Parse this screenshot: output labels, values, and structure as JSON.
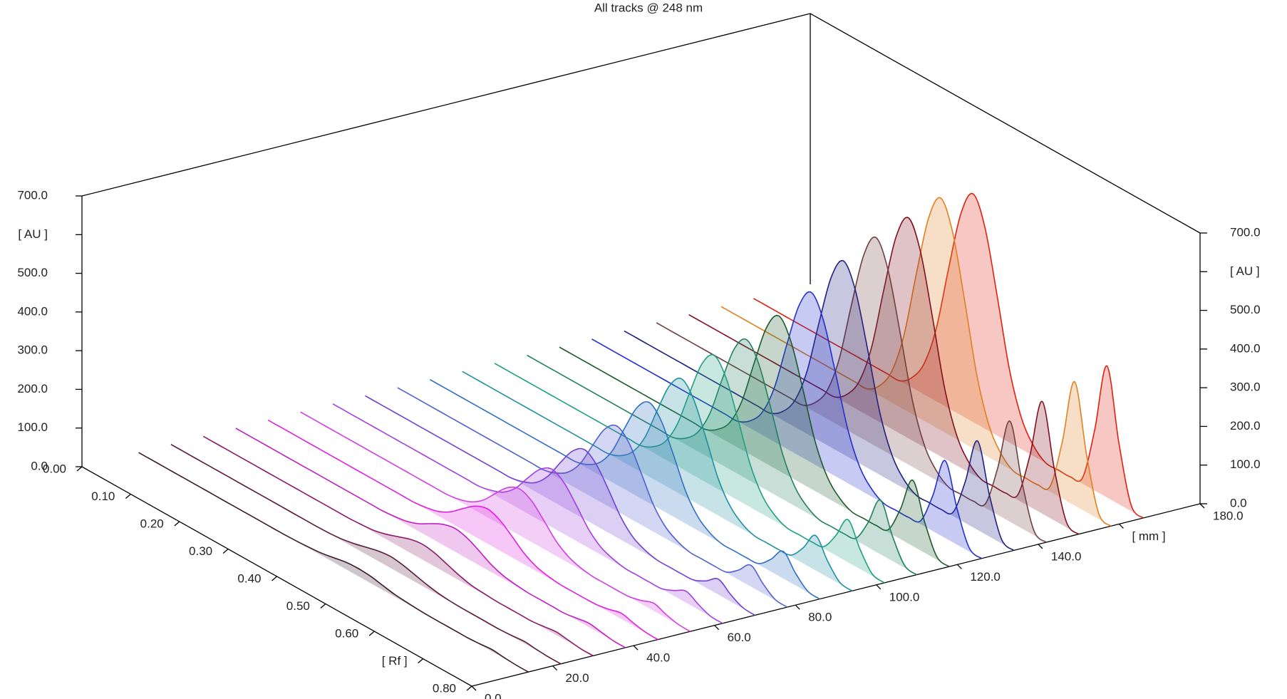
{
  "chart_data": {
    "type": "waterfall3d",
    "title": "All tracks @ 248 nm",
    "xlim": [
      0,
      0.8
    ],
    "xticks": [
      {
        "value": 0,
        "label": "0.00"
      },
      {
        "value": 0.1,
        "label": "0.10"
      },
      {
        "value": 0.2,
        "label": "0.20"
      },
      {
        "value": 0.3,
        "label": "0.30"
      },
      {
        "value": 0.4,
        "label": "0.40"
      },
      {
        "value": 0.5,
        "label": "0.50"
      },
      {
        "value": 0.6,
        "label": "0.60"
      },
      {
        "value": 0.7,
        "label": "[ Rf ]"
      },
      {
        "value": 0.8,
        "label": "0.80"
      }
    ],
    "ylim": [
      0,
      180
    ],
    "yticks": [
      {
        "value": 0,
        "label": "0.0"
      },
      {
        "value": 20,
        "label": "20.0"
      },
      {
        "value": 40,
        "label": "40.0"
      },
      {
        "value": 60,
        "label": "60.0"
      },
      {
        "value": 80,
        "label": "80.0"
      },
      {
        "value": 100,
        "label": "100.0"
      },
      {
        "value": 120,
        "label": "120.0"
      },
      {
        "value": 140,
        "label": "140.0"
      },
      {
        "value": 160,
        "label": "[ mm ]"
      },
      {
        "value": 180,
        "label": "180.0"
      }
    ],
    "zlim": [
      0,
      700
    ],
    "zticks": [
      {
        "value": 0,
        "label": "0.0"
      },
      {
        "value": 100,
        "label": "100.0"
      },
      {
        "value": 200,
        "label": "200.0"
      },
      {
        "value": 300,
        "label": "300.0"
      },
      {
        "value": 400,
        "label": "400.0"
      },
      {
        "value": 500,
        "label": "500.0"
      },
      {
        "value": 600,
        "label": "[ AU ]"
      },
      {
        "value": 700,
        "label": "700.0"
      }
    ],
    "x": [
      0,
      0.025,
      0.05,
      0.075,
      0.1,
      0.125,
      0.15,
      0.175,
      0.2,
      0.225,
      0.25,
      0.275,
      0.3,
      0.325,
      0.35,
      0.375,
      0.4,
      0.425,
      0.45,
      0.475,
      0.5,
      0.525,
      0.55,
      0.575,
      0.6,
      0.625,
      0.65,
      0.675,
      0.7,
      0.725,
      0.75,
      0.775,
      0.8
    ],
    "series": [
      {
        "color": "#3a1a2a",
        "position": 14,
        "values": [
          0,
          0,
          0,
          0,
          0,
          0,
          0,
          0,
          0,
          0,
          0,
          0,
          0,
          1,
          3,
          6,
          12,
          18,
          20,
          18,
          12,
          6,
          3,
          1,
          0,
          0,
          0,
          0,
          2,
          5,
          2,
          0,
          0
        ]
      },
      {
        "color": "#5a1a3a",
        "position": 22,
        "values": [
          0,
          0,
          0,
          0,
          0,
          0,
          0,
          0,
          0,
          0,
          0,
          0,
          0,
          1,
          4,
          10,
          18,
          26,
          30,
          26,
          18,
          10,
          4,
          1,
          0,
          0,
          0,
          0,
          2,
          5,
          2,
          0,
          0
        ]
      },
      {
        "color": "#8a1a6a",
        "position": 30,
        "values": [
          0,
          0,
          0,
          0,
          0,
          0,
          0,
          0,
          0,
          0,
          0,
          0,
          0,
          2,
          5,
          13,
          24,
          35,
          40,
          35,
          24,
          13,
          5,
          2,
          0,
          0,
          0,
          0,
          4,
          8,
          4,
          0,
          0
        ]
      },
      {
        "color": "#c020c0",
        "position": 38,
        "values": [
          0,
          0,
          0,
          0,
          0,
          0,
          0,
          0,
          0,
          0,
          0,
          0,
          0,
          3,
          8,
          19,
          37,
          53,
          60,
          53,
          37,
          19,
          8,
          3,
          0,
          0,
          0,
          0,
          5,
          10,
          5,
          0,
          0
        ]
      },
      {
        "color": "#e020e0",
        "position": 46,
        "values": [
          0,
          0,
          0,
          0,
          0,
          0,
          0,
          0,
          0,
          0,
          0,
          0,
          0,
          4,
          12,
          29,
          55,
          79,
          90,
          79,
          55,
          29,
          12,
          4,
          0,
          0,
          0,
          1,
          7,
          15,
          7,
          1,
          0
        ]
      },
      {
        "color": "#d040e0",
        "position": 54,
        "values": [
          0,
          0,
          0,
          0,
          0,
          0,
          0,
          0,
          0,
          0,
          0,
          0,
          0,
          5,
          16,
          38,
          73,
          106,
          120,
          106,
          73,
          38,
          16,
          5,
          0,
          0,
          0,
          1,
          9,
          20,
          9,
          1,
          0
        ]
      },
      {
        "color": "#a040e0",
        "position": 62,
        "values": [
          0,
          0,
          0,
          0,
          0,
          0,
          0,
          0,
          0,
          0,
          0,
          0,
          0,
          7,
          20,
          48,
          92,
          132,
          150,
          132,
          92,
          48,
          20,
          7,
          0,
          0,
          0,
          1,
          14,
          30,
          14,
          1,
          0
        ]
      },
      {
        "color": "#7040d0",
        "position": 70,
        "values": [
          0,
          0,
          0,
          0,
          0,
          0,
          0,
          0,
          0,
          0,
          0,
          0,
          0,
          8,
          24,
          58,
          110,
          158,
          180,
          158,
          110,
          58,
          24,
          8,
          0,
          0,
          0,
          2,
          18,
          40,
          18,
          2,
          0
        ]
      },
      {
        "color": "#5060d0",
        "position": 78,
        "values": [
          0,
          0,
          0,
          0,
          0,
          0,
          0,
          0,
          0,
          0,
          0,
          0,
          0,
          10,
          30,
          70,
          134,
          194,
          220,
          194,
          134,
          70,
          30,
          10,
          0,
          0,
          0,
          2,
          25,
          55,
          25,
          2,
          0
        ]
      },
      {
        "color": "#3070c0",
        "position": 86,
        "values": [
          0,
          0,
          0,
          0,
          0,
          0,
          0,
          0,
          0,
          0,
          0,
          0,
          0,
          11,
          35,
          83,
          159,
          229,
          260,
          229,
          159,
          83,
          35,
          11,
          0,
          0,
          0,
          3,
          32,
          70,
          32,
          3,
          0
        ]
      },
      {
        "color": "#2090a0",
        "position": 94,
        "values": [
          0,
          0,
          0,
          0,
          0,
          0,
          0,
          0,
          0,
          0,
          0,
          0,
          0,
          13,
          41,
          96,
          183,
          264,
          300,
          264,
          183,
          96,
          41,
          13,
          0,
          0,
          0,
          4,
          41,
          90,
          41,
          4,
          0
        ]
      },
      {
        "color": "#20a080",
        "position": 102,
        "values": [
          0,
          0,
          0,
          0,
          0,
          0,
          0,
          0,
          0,
          0,
          0,
          0,
          0,
          15,
          46,
          109,
          207,
          299,
          340,
          299,
          207,
          109,
          46,
          15,
          0,
          0,
          0,
          5,
          51,
          110,
          51,
          5,
          0
        ]
      },
      {
        "color": "#208060",
        "position": 110,
        "values": [
          0,
          0,
          0,
          0,
          0,
          0,
          0,
          0,
          0,
          0,
          0,
          0,
          0,
          16,
          49,
          115,
          220,
          317,
          360,
          317,
          220,
          115,
          49,
          16,
          0,
          0,
          0,
          6,
          64,
          140,
          64,
          6,
          0
        ]
      },
      {
        "color": "#1a5a2a",
        "position": 118,
        "values": [
          0,
          0,
          0,
          0,
          0,
          0,
          0,
          0,
          0,
          0,
          0,
          0,
          0,
          18,
          54,
          128,
          244,
          352,
          400,
          352,
          244,
          128,
          54,
          18,
          0,
          0,
          0,
          7,
          78,
          170,
          78,
          7,
          0
        ]
      },
      {
        "color": "#2030d0",
        "position": 126,
        "values": [
          0,
          0,
          0,
          0,
          0,
          0,
          0,
          0,
          0,
          0,
          0,
          0,
          0,
          19,
          59,
          141,
          268,
          387,
          440,
          387,
          268,
          141,
          59,
          19,
          0,
          0,
          0,
          9,
          92,
          200,
          92,
          9,
          0
        ]
      },
      {
        "color": "#202080",
        "position": 134,
        "values": [
          0,
          0,
          0,
          0,
          0,
          0,
          0,
          0,
          0,
          0,
          0,
          0,
          0,
          22,
          68,
          160,
          305,
          440,
          500,
          440,
          305,
          160,
          68,
          22,
          0,
          0,
          0,
          10,
          106,
          230,
          106,
          10,
          0
        ]
      },
      {
        "color": "#704040",
        "position": 142,
        "values": [
          0,
          0,
          0,
          0,
          0,
          0,
          0,
          0,
          0,
          0,
          0,
          0,
          0,
          24,
          73,
          173,
          329,
          475,
          540,
          475,
          329,
          173,
          73,
          24,
          0,
          0,
          0,
          11,
          120,
          260,
          120,
          11,
          0
        ]
      },
      {
        "color": "#801020",
        "position": 150,
        "values": [
          0,
          0,
          0,
          0,
          0,
          0,
          0,
          0,
          0,
          0,
          0,
          0,
          0,
          25,
          77,
          182,
          348,
          502,
          570,
          502,
          348,
          182,
          77,
          25,
          0,
          0,
          0,
          13,
          133,
          290,
          133,
          13,
          0
        ]
      },
      {
        "color": "#e08020",
        "position": 158,
        "values": [
          0,
          0,
          0,
          0,
          0,
          0,
          0,
          0,
          0,
          0,
          0,
          0,
          0,
          26,
          81,
          192,
          366,
          528,
          600,
          528,
          366,
          192,
          81,
          26,
          0,
          0,
          0,
          14,
          147,
          320,
          147,
          14,
          0
        ]
      },
      {
        "color": "#e02010",
        "position": 166,
        "values": [
          0,
          0,
          0,
          0,
          0,
          0,
          0,
          0,
          0,
          0,
          0,
          0,
          0,
          26,
          80,
          189,
          360,
          519,
          590,
          519,
          360,
          189,
          80,
          26,
          0,
          0,
          0,
          15,
          156,
          340,
          156,
          15,
          0
        ]
      }
    ]
  }
}
